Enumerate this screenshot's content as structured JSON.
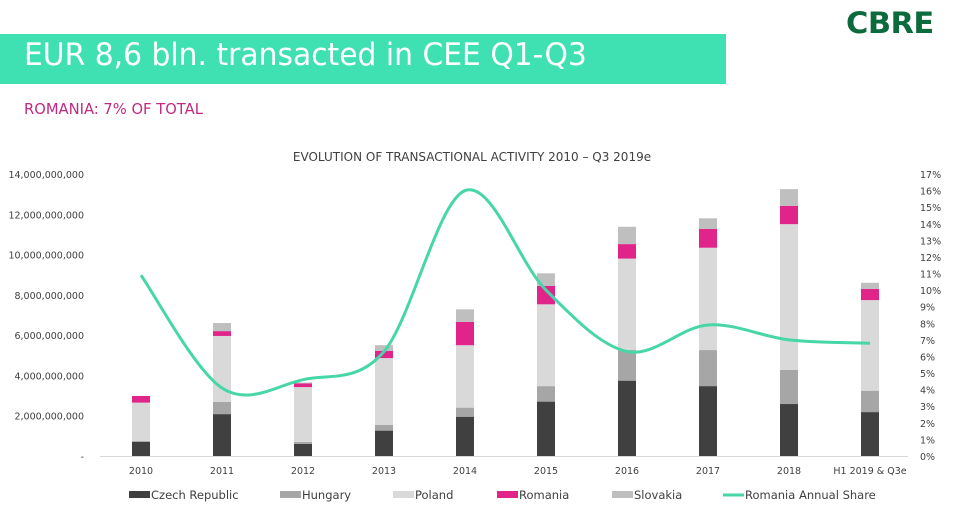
{
  "header": {
    "logo": "CBRE",
    "banner_title": "EUR 8,6 bln. transacted in CEE Q1-Q3",
    "subtitle": "ROMANIA: 7% OF TOTAL"
  },
  "colors": {
    "banner": "#3fe0b2",
    "subtitle": "#c2287f",
    "logo": "#0b6b3c"
  },
  "chart_data": {
    "type": "bar",
    "stacked": true,
    "title": "EVOLUTION OF TRANSACTIONAL ACTIVITY 2010 – Q3 2019e",
    "xlabel": "",
    "ylabel": "",
    "unit": "EUR",
    "categories": [
      "2010",
      "2011",
      "2012",
      "2013",
      "2014",
      "2015",
      "2016",
      "2017",
      "2018",
      "H1 2019 & Q3e"
    ],
    "ylim": [
      0,
      14000000000
    ],
    "y_ticks": [
      "-",
      "2,000,000,000",
      "4,000,000,000",
      "6,000,000,000",
      "8,000,000,000",
      "10,000,000,000",
      "12,000,000,000",
      "14,000,000,000"
    ],
    "y2lim": [
      0,
      17
    ],
    "y2_ticks": [
      "0%",
      "1%",
      "2%",
      "3%",
      "4%",
      "5%",
      "6%",
      "7%",
      "8%",
      "9%",
      "10%",
      "11%",
      "12%",
      "13%",
      "14%",
      "15%",
      "16%",
      "17%"
    ],
    "series": [
      {
        "name": "Czech Republic",
        "color": "#404040",
        "values": [
          700000000,
          2080000000,
          600000000,
          1260000000,
          1950000000,
          2700000000,
          3740000000,
          3470000000,
          2580000000,
          2180000000
        ]
      },
      {
        "name": "Hungary",
        "color": "#a6a6a6",
        "values": [
          50000000,
          600000000,
          100000000,
          280000000,
          450000000,
          770000000,
          1520000000,
          1790000000,
          1690000000,
          1060000000
        ]
      },
      {
        "name": "Poland",
        "color": "#d9d9d9",
        "values": [
          1900000000,
          3280000000,
          2720000000,
          3320000000,
          3100000000,
          4060000000,
          4540000000,
          5080000000,
          7240000000,
          4500000000
        ]
      },
      {
        "name": "Romania",
        "color": "#e0248a",
        "values": [
          330000000,
          240000000,
          180000000,
          360000000,
          1160000000,
          920000000,
          720000000,
          930000000,
          910000000,
          550000000
        ]
      },
      {
        "name": "Slovakia",
        "color": "#bfbfbf",
        "values": [
          0,
          400000000,
          50000000,
          280000000,
          620000000,
          620000000,
          860000000,
          530000000,
          830000000,
          310000000
        ]
      }
    ],
    "line_series": {
      "name": "Romania Annual Share",
      "color": "#47d6a8",
      "axis": "right",
      "unit": "%",
      "values": [
        10.9,
        4.1,
        4.6,
        6.3,
        16.0,
        10.0,
        6.3,
        7.9,
        7.0,
        6.8
      ]
    },
    "legend_position": "bottom",
    "grid": false
  }
}
